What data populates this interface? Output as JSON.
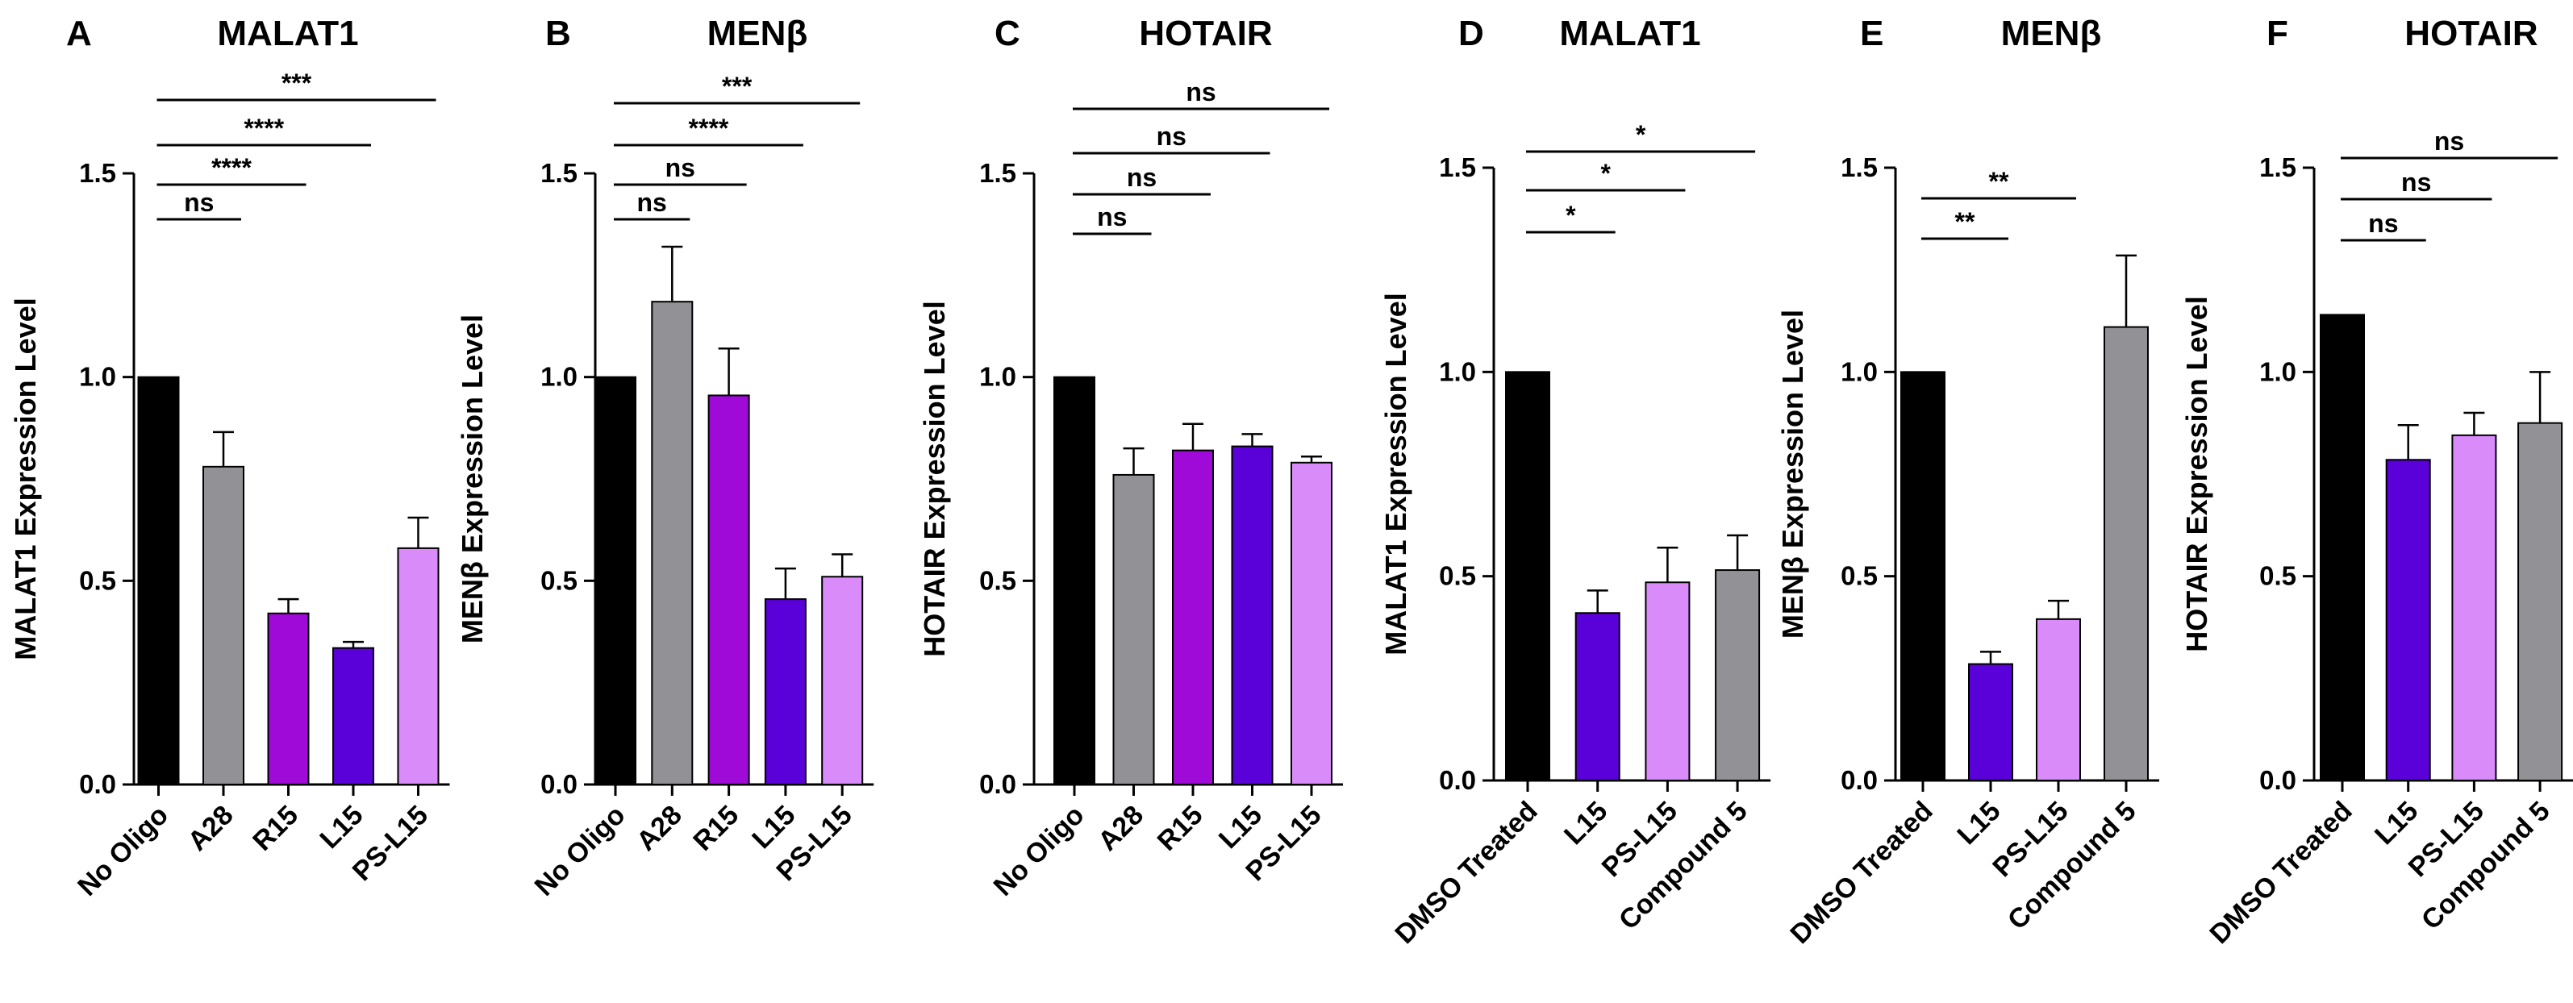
{
  "figure": {
    "panels": [
      {
        "letter": "A",
        "title": "MALAT1",
        "ylabel": "MALAT1 Expression Level"
      },
      {
        "letter": "B",
        "title": "MENβ",
        "ylabel": "MENβ  Expression Level"
      },
      {
        "letter": "C",
        "title": "HOTAIR",
        "ylabel": "HOTAIR  Expression Level"
      },
      {
        "letter": "D",
        "title": "MALAT1",
        "ylabel": "MALAT1 Expression Level"
      },
      {
        "letter": "E",
        "title": "MENβ",
        "ylabel": "MENβ  Expression Level"
      },
      {
        "letter": "F",
        "title": "HOTAIR",
        "ylabel": "HOTAIR  Expression Level"
      }
    ]
  },
  "colors": {
    "black": "#000000",
    "gray": "#929296",
    "magenta": "#a00ad8",
    "blue": "#5a00d8",
    "light_violet": "#d88bf9"
  },
  "chart_data": [
    {
      "type": "bar",
      "letter": "A",
      "title": "MALAT1",
      "ylabel": "MALAT1 Expression Level",
      "xlabel": "",
      "ylim": [
        0,
        1.5
      ],
      "yticks": [
        "0.0",
        "0.5",
        "1.0",
        "1.5"
      ],
      "categories": [
        "No Oligo",
        "A28",
        "R15",
        "L15",
        "PS-L15"
      ],
      "values": [
        1.0,
        0.78,
        0.42,
        0.335,
        0.58
      ],
      "errors": [
        0,
        0.085,
        0.035,
        0.015,
        0.075
      ],
      "colors": [
        "#000000",
        "#929296",
        "#a00ad8",
        "#5a00d8",
        "#d88bf9"
      ],
      "comparisons": [
        {
          "from": 0,
          "to": 1,
          "label": "ns"
        },
        {
          "from": 0,
          "to": 2,
          "label": "****"
        },
        {
          "from": 0,
          "to": 3,
          "label": "****"
        },
        {
          "from": 0,
          "to": 4,
          "label": "***"
        }
      ]
    },
    {
      "type": "bar",
      "letter": "B",
      "title": "MENβ",
      "ylabel": "MENβ  Expression Level",
      "xlabel": "",
      "ylim": [
        0,
        1.5
      ],
      "yticks": [
        "0.0",
        "0.5",
        "1.0",
        "1.5"
      ],
      "categories": [
        "No Oligo",
        "A28",
        "R15",
        "L15",
        "PS-L15"
      ],
      "values": [
        1.0,
        1.185,
        0.955,
        0.455,
        0.51
      ],
      "errors": [
        0,
        0.135,
        0.115,
        0.075,
        0.055
      ],
      "colors": [
        "#000000",
        "#929296",
        "#a00ad8",
        "#5a00d8",
        "#d88bf9"
      ],
      "comparisons": [
        {
          "from": 0,
          "to": 1,
          "label": "ns"
        },
        {
          "from": 0,
          "to": 2,
          "label": "ns"
        },
        {
          "from": 0,
          "to": 3,
          "label": "****"
        },
        {
          "from": 0,
          "to": 4,
          "label": "***"
        }
      ]
    },
    {
      "type": "bar",
      "letter": "C",
      "title": "HOTAIR",
      "ylabel": "HOTAIR  Expression Level",
      "xlabel": "",
      "ylim": [
        0,
        1.5
      ],
      "yticks": [
        "0.0",
        "0.5",
        "1.0",
        "1.5"
      ],
      "categories": [
        "No Oligo",
        "A28",
        "R15",
        "L15",
        "PS-L15"
      ],
      "values": [
        1.0,
        0.76,
        0.82,
        0.83,
        0.79
      ],
      "errors": [
        0,
        0.065,
        0.065,
        0.03,
        0.015
      ],
      "colors": [
        "#000000",
        "#929296",
        "#a00ad8",
        "#5a00d8",
        "#d88bf9"
      ],
      "comparisons": [
        {
          "from": 0,
          "to": 1,
          "label": "ns"
        },
        {
          "from": 0,
          "to": 2,
          "label": "ns"
        },
        {
          "from": 0,
          "to": 3,
          "label": "ns"
        },
        {
          "from": 0,
          "to": 4,
          "label": "ns"
        }
      ]
    },
    {
      "type": "bar",
      "letter": "D",
      "title": "MALAT1",
      "ylabel": "MALAT1 Expression Level",
      "xlabel": "",
      "ylim": [
        0,
        1.5
      ],
      "yticks": [
        "0.0",
        "0.5",
        "1.0",
        "1.5"
      ],
      "categories": [
        "DMSO Treated",
        "L15",
        "PS-L15",
        "Compound 5"
      ],
      "values": [
        1.0,
        0.41,
        0.485,
        0.515
      ],
      "errors": [
        0,
        0.055,
        0.085,
        0.085
      ],
      "colors": [
        "#000000",
        "#5a00d8",
        "#d88bf9",
        "#929296"
      ],
      "comparisons": [
        {
          "from": 0,
          "to": 1,
          "label": "*"
        },
        {
          "from": 0,
          "to": 2,
          "label": "*"
        },
        {
          "from": 0,
          "to": 3,
          "label": "*"
        }
      ]
    },
    {
      "type": "bar",
      "letter": "E",
      "title": "MENβ",
      "ylabel": "MENβ  Expression Level",
      "xlabel": "",
      "ylim": [
        0,
        1.5
      ],
      "yticks": [
        "0.0",
        "0.5",
        "1.0",
        "1.5"
      ],
      "categories": [
        "DMSO Treated",
        "L15",
        "PS-L15",
        "Compound 5"
      ],
      "values": [
        1.0,
        0.285,
        0.395,
        1.11
      ],
      "errors": [
        0,
        0.03,
        0.045,
        0.175
      ],
      "colors": [
        "#000000",
        "#5a00d8",
        "#d88bf9",
        "#929296"
      ],
      "comparisons": [
        {
          "from": 0,
          "to": 1,
          "label": "**"
        },
        {
          "from": 0,
          "to": 2,
          "label": "**"
        }
      ]
    },
    {
      "type": "bar",
      "letter": "F",
      "title": "HOTAIR",
      "ylabel": "HOTAIR  Expression Level",
      "xlabel": "",
      "ylim": [
        0,
        1.5
      ],
      "yticks": [
        "0.0",
        "0.5",
        "1.0",
        "1.5"
      ],
      "categories": [
        "DMSO Treated",
        "L15",
        "PS-L15",
        "Compound 5"
      ],
      "values": [
        1.14,
        0.785,
        0.845,
        0.875
      ],
      "errors": [
        0,
        0.085,
        0.055,
        0.125
      ],
      "colors": [
        "#000000",
        "#5a00d8",
        "#d88bf9",
        "#929296"
      ],
      "comparisons": [
        {
          "from": 0,
          "to": 1,
          "label": "ns"
        },
        {
          "from": 0,
          "to": 2,
          "label": "ns"
        },
        {
          "from": 0,
          "to": 3,
          "label": "ns"
        }
      ]
    }
  ]
}
